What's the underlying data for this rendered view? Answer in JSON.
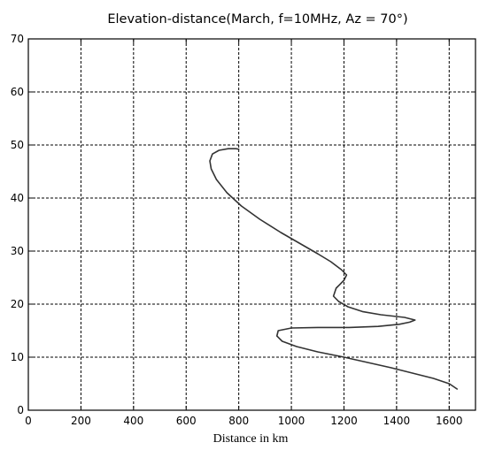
{
  "chart_data": {
    "type": "line",
    "title": "Elevation-distance(March, f=10MHz, Az = 70°)",
    "xlabel": "Distance in km",
    "ylabel": "",
    "xlim": [
      0,
      1700
    ],
    "ylim": [
      0,
      70
    ],
    "xticks": [
      0,
      200,
      400,
      600,
      800,
      1000,
      1200,
      1400,
      1600
    ],
    "yticks": [
      0,
      10,
      20,
      30,
      40,
      50,
      60,
      70
    ],
    "grid": true,
    "grid_style": "dashed",
    "line_color": "#333333",
    "series": [
      {
        "name": "",
        "x": [
          1630,
          1600,
          1540,
          1460,
          1380,
          1290,
          1200,
          1100,
          1020,
          965,
          945,
          950,
          1000,
          1100,
          1220,
          1330,
          1410,
          1450,
          1470,
          1430,
          1340,
          1270,
          1215,
          1180,
          1160,
          1170,
          1200,
          1210,
          1190,
          1150,
          1100,
          1030,
          960,
          880,
          810,
          755,
          715,
          695,
          690,
          700,
          725,
          760,
          790,
          800
        ],
        "y": [
          4,
          5,
          6,
          7,
          8,
          9,
          10,
          11,
          12,
          13,
          14,
          15,
          15.5,
          15.6,
          15.6,
          15.8,
          16.2,
          16.6,
          17,
          17.5,
          18,
          18.6,
          19.5,
          20.5,
          21.5,
          23,
          24.5,
          25.5,
          26.5,
          28,
          29.5,
          31.5,
          33.5,
          36,
          38.5,
          41,
          43.5,
          45.5,
          47,
          48.3,
          49,
          49.3,
          49.3,
          49.2
        ]
      }
    ]
  }
}
